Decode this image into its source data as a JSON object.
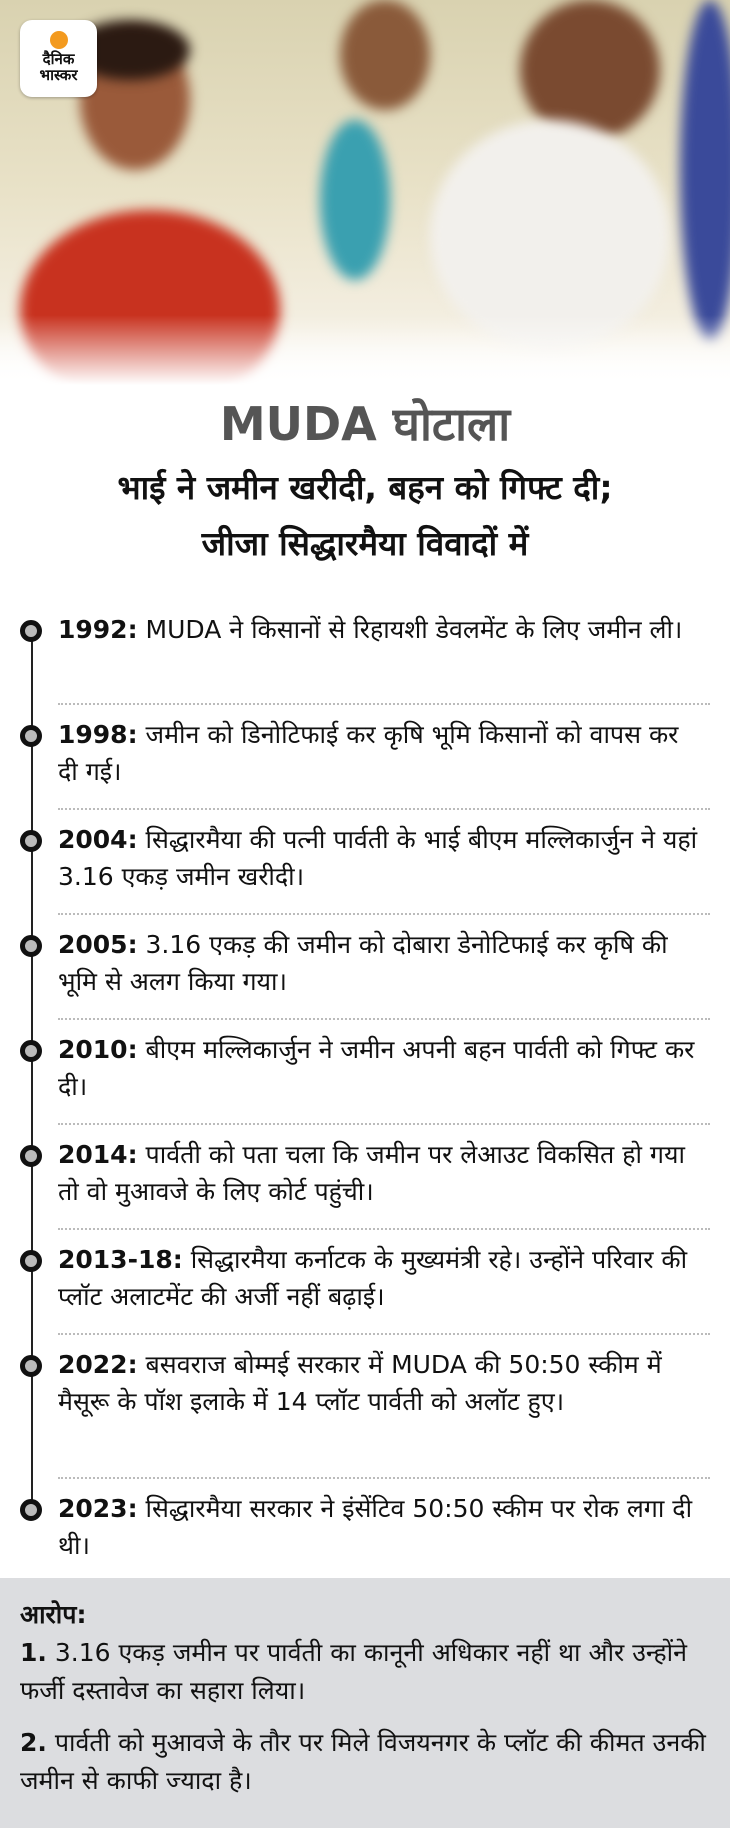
{
  "logo": {
    "brand": "दैनिक भास्कर",
    "line1": "दैनिक",
    "line2": "भास्कर",
    "accent": "#f39a1f"
  },
  "title": "MUDA घोटाला",
  "subtitle_line1": "भाई ने जमीन खरीदी, बहन को गिफ्ट दी;",
  "subtitle_line2": "जीजा सिद्धारमैया विवादों में",
  "timeline": [
    {
      "year": "1992:",
      "text": "MUDA ने किसानों से रिहायशी डेवलमेंट के लिए जमीन ली।"
    },
    {
      "year": "1998:",
      "text": "जमीन को डिनोटिफाई कर कृषि भूमि किसानों को वापस कर दी गई।"
    },
    {
      "year": "2004:",
      "text": "सिद्धारमैया की पत्नी पार्वती के भाई बीएम मल्लिकार्जुन ने यहां 3.16 एकड़ जमीन खरीदी।"
    },
    {
      "year": "2005:",
      "text": "3.16 एकड़ की जमीन को दोबारा डेनोटिफाई कर कृषि की भूमि से अलग किया गया।"
    },
    {
      "year": "2010:",
      "text": "बीएम मल्लिकार्जुन ने जमीन अपनी बहन पार्वती को गिफ्ट कर दी।"
    },
    {
      "year": "2014:",
      "text": "पार्वती को पता चला कि जमीन पर लेआउट विकसित हो गया तो वो मुआवजे के लिए कोर्ट पहुंची।"
    },
    {
      "year": "2013-18:",
      "text": "सिद्धारमैया कर्नाटक के मुख्यमंत्री रहे। उन्होंने परिवार की प्लॉट अलाटमेंट की अर्जी नहीं बढ़ाई।"
    },
    {
      "year": "2022:",
      "text": "बसवराज बोम्मई सरकार में MUDA की 50:50 स्कीम में मैसूरू के पॉश इलाके में 14 प्लॉट पार्वती को अलॉट हुए।"
    },
    {
      "year": "2023:",
      "text": "सिद्धारमैया सरकार ने इंसेंटिव 50:50 स्कीम पर रोक लगा दी थी।"
    }
  ],
  "charges": {
    "heading": "आरोप:",
    "items": [
      {
        "num": "1.",
        "text": "3.16 एकड़ जमीन पर पार्वती का कानूनी अधिकार नहीं था और उन्होंने फर्जी दस्तावेज का सहारा लिया।"
      },
      {
        "num": "2.",
        "text": "पार्वती को मुआवजे के तौर पर मिले विजयनगर के प्लॉट की कीमत उनकी जमीन से काफी ज्यादा है।"
      }
    ]
  }
}
